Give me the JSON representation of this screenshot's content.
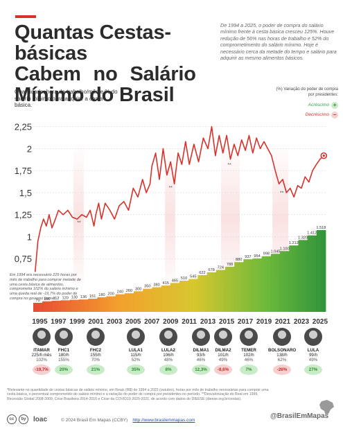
{
  "header": {
    "title_lines": [
      "Quantas Cestas-básicas",
      "Cabem no Salário",
      "Mínimo do Brasil"
    ],
    "intro": "De 1994 a 2025, o poder de compra do salário mínimo frente à cesta básica cresceu 125%. Houve redução de 56% nas horas de trabalho e 52% do comprometimento do salário mínimo. Hoje é necessário cerca da metade do tempo e salário para adquirir as mesmo alimentos básicos.",
    "subtitle": "Quantidade, hora de trabalho/mês e % do salário mínimo para adquirir a cesta básica."
  },
  "legend": {
    "heading": "(%) Variação do poder de compra por presidentes:",
    "increase_label": "Acréscimo",
    "increase_symbol": "+",
    "decrease_label": "Decréscimo",
    "decrease_symbol": "−",
    "increase_color": "#2ea043",
    "decrease_color": "#d6322b"
  },
  "annotation": "Em 1994 era necessário 225 horas por mês de trabalho para comprar metade de uma cesta básica de alimentos, comprometia 102% do salário mínimo e uma queda real de -19,7% do poder de compra no governo Itamar.",
  "chart_data": {
    "type": "line",
    "title": "Quantas Cestas-básicas Cabem no Salário Mínimo do Brasil",
    "ylabel": "",
    "xlabel": "",
    "ylim": [
      0.5,
      2.35
    ],
    "xlim": [
      1994.3,
      2025.6
    ],
    "yticks": [
      "0,75",
      "1",
      "1,25",
      "1,5",
      "1,75",
      "2",
      "2,25"
    ],
    "ytick_values": [
      0.75,
      1,
      1.25,
      1.5,
      1.75,
      2,
      2.25
    ],
    "xticks": [
      "1995",
      "1997",
      "1999",
      "2001",
      "2003",
      "2005",
      "2007",
      "2009",
      "2011",
      "2013",
      "2015",
      "2017",
      "2019",
      "2021",
      "2023",
      "2025"
    ],
    "xtick_values": [
      1995,
      1997,
      1999,
      2001,
      2003,
      2005,
      2007,
      2009,
      2011,
      2013,
      2015,
      2017,
      2019,
      2021,
      2023,
      2025
    ],
    "line_color": "#d6322b",
    "grid": "horizontal",
    "series": [
      {
        "x": [
          1994.5,
          1994.8,
          1995.1,
          1995.4,
          1995.7,
          1996.0,
          1996.3,
          1996.6,
          1997.0,
          1997.5,
          1998.0,
          1998.5,
          1999.0,
          1999.5,
          2000.0,
          2000.4,
          2000.8,
          2001.0,
          2001.3,
          2001.6,
          2002.0,
          2002.5,
          2003.0,
          2003.5,
          2004.0,
          2004.5,
          2005.0,
          2005.5,
          2006.0,
          2006.4,
          2006.8,
          2007.0,
          2007.4,
          2007.8,
          2008.2,
          2008.6,
          2009.0,
          2009.4,
          2009.8,
          2010.2,
          2010.6,
          2011.0,
          2011.5,
          2012.0,
          2012.5,
          2013.0,
          2013.4,
          2013.8,
          2014.2,
          2014.6,
          2015.0,
          2015.4,
          2015.8,
          2016.2,
          2016.6,
          2017.0,
          2017.4,
          2017.8,
          2018.2,
          2018.6,
          2019.0,
          2019.4,
          2019.8,
          2020.2,
          2020.6,
          2021.0,
          2021.4,
          2021.8,
          2022.2,
          2022.6,
          2023.0,
          2023.4,
          2023.8,
          2024.2,
          2024.6,
          2025.0,
          2025.4
        ],
        "y": [
          0.6,
          0.95,
          1.1,
          1.2,
          1.12,
          1.25,
          1.1,
          1.18,
          1.3,
          1.25,
          1.3,
          1.22,
          1.2,
          1.25,
          1.22,
          1.3,
          1.12,
          1.25,
          1.38,
          1.2,
          1.38,
          1.3,
          1.2,
          1.35,
          1.4,
          1.3,
          1.55,
          1.45,
          1.65,
          1.5,
          1.6,
          1.8,
          1.95,
          1.65,
          2.0,
          1.7,
          1.85,
          1.6,
          1.95,
          1.82,
          2.08,
          1.82,
          2.05,
          1.85,
          2.12,
          2.0,
          2.25,
          1.92,
          2.15,
          1.95,
          2.15,
          1.88,
          2.05,
          1.92,
          2.1,
          1.98,
          2.15,
          1.95,
          2.12,
          2.0,
          2.08,
          2.0,
          1.92,
          1.75,
          1.6,
          1.65,
          1.5,
          1.55,
          1.45,
          1.58,
          1.55,
          1.68,
          1.62,
          1.75,
          1.82,
          1.88,
          1.92
        ]
      }
    ],
    "valley_marks": [
      "**",
      "**",
      "**",
      "**"
    ],
    "hours_series": {
      "years": [
        1994,
        1995,
        1996,
        1997,
        1998,
        1999,
        2000,
        2001,
        2002,
        2003,
        2004,
        2005,
        2006,
        2007,
        2008,
        2009,
        2010,
        2011,
        2012,
        2013,
        2014,
        2015,
        2016,
        2017,
        2018,
        2019,
        2020,
        2021,
        2022,
        2023,
        2024,
        2025
      ],
      "labels": [
        "70",
        "100",
        "112",
        "120",
        "130",
        "136",
        "151",
        "180",
        "200",
        "240",
        "260",
        "300",
        "350",
        "380",
        "415",
        "465",
        "510",
        "545",
        "622",
        "678",
        "724",
        "788",
        "880",
        "937",
        "954",
        "998",
        "1.045",
        "1.100",
        "1.212",
        "1.320",
        "1.412",
        "1.518"
      ]
    }
  },
  "presidents": [
    {
      "name": "ITAMAR",
      "hours": "225/h mês",
      "pct": "102%",
      "variation": "-19,7%",
      "trend": "neg"
    },
    {
      "name": "FHC1",
      "hours": "180/h",
      "pct": "155%",
      "variation": "20%",
      "trend": "pos"
    },
    {
      "name": "FHC2",
      "hours": "155/h",
      "pct": "70%",
      "variation": "21%",
      "trend": "pos"
    },
    {
      "name": "LULA1",
      "hours": "115/h",
      "pct": "52%",
      "variation": "35%",
      "trend": "pos"
    },
    {
      "name": "LULA2",
      "hours": "106/h",
      "pct": "48%",
      "variation": "8%",
      "trend": "pos"
    },
    {
      "name": "DILMA1",
      "hours": "93/h",
      "pct": "46%",
      "variation": "12,3%",
      "trend": "pos"
    },
    {
      "name": "DILMA2",
      "hours": "101/h",
      "pct": "49%",
      "variation": "-8,6%",
      "trend": "neg"
    },
    {
      "name": "TEMER",
      "hours": "102/h",
      "pct": "46%",
      "variation": "7%",
      "trend": "pos"
    },
    {
      "name": "BOLSONARO",
      "hours": "138/h",
      "pct": "62%",
      "variation": "-26%",
      "trend": "neg"
    },
    {
      "name": "LULA",
      "hours": "99/h",
      "pct": "49%",
      "variation": "27%",
      "trend": "pos"
    }
  ],
  "footnote": "*Relevante no quantidade de cestas básicas de salário mínimo, em Reais (R$) de 1994 a 2025 (outubro), horas por mês de trabalho necessárias para comprar uma cesta básica, o percentual comprometido do salário mínimo e a variação do poder de compra por presidentes no período. **Desvalorização do Real em 1999, Recessão Global 2008-2009, Crise Brasileira 2014-2016 e Crise da COVID19 2020-2021, de acordo com dados do DIEESE (dieese.org.br/cestas).",
  "footer": {
    "cc_marks": [
      "cc",
      "by"
    ],
    "org": "loac",
    "credit": "© 2024 Brasil Em Mapas (CCBY)",
    "url": "http://www.brasilemmapas.com",
    "handle": "@BrasilEmMapas"
  }
}
